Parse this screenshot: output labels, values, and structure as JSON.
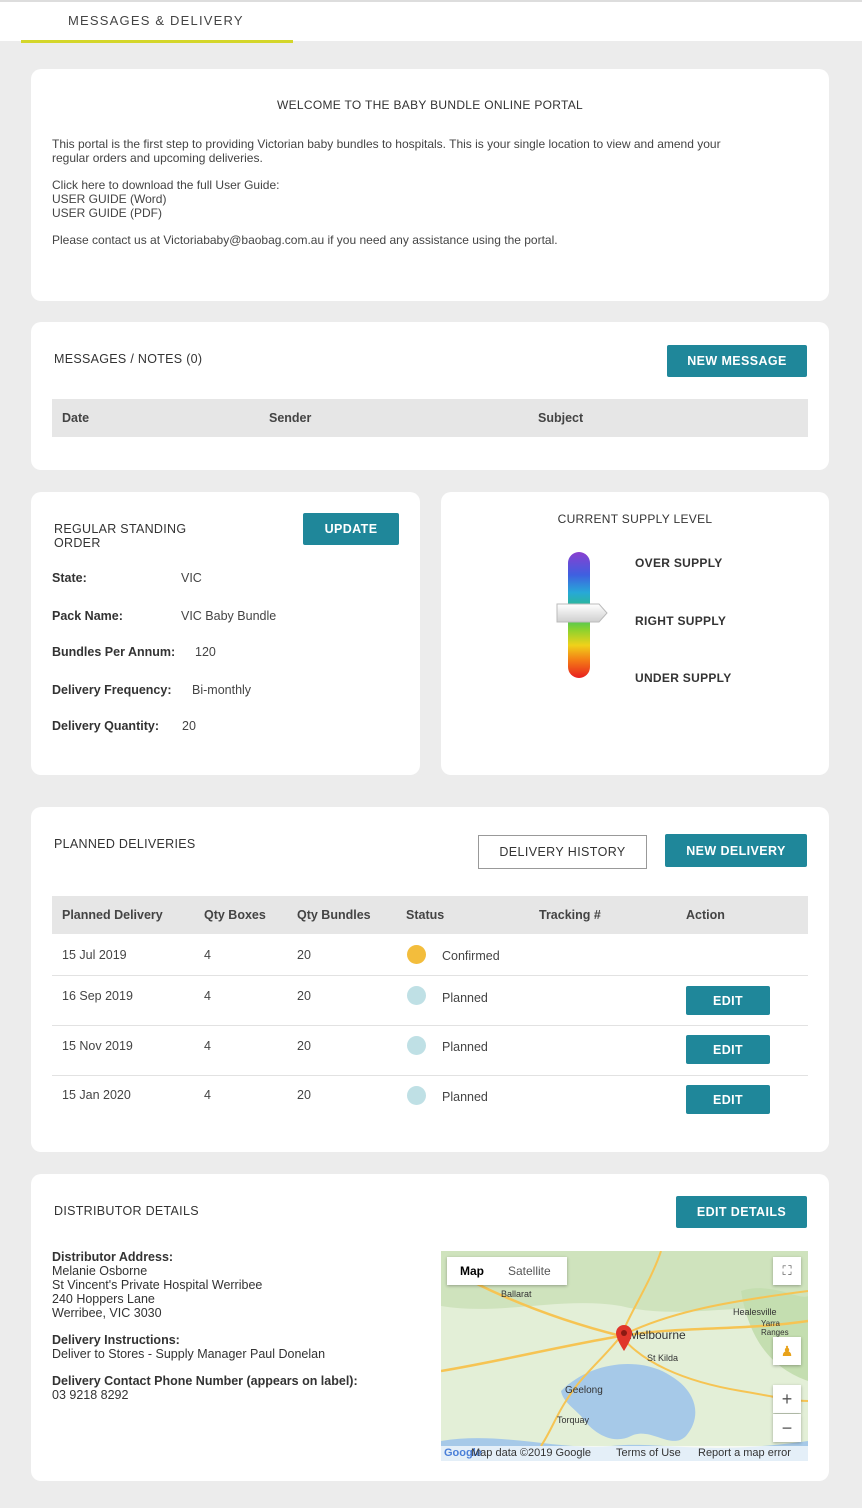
{
  "tab": {
    "label": "MESSAGES & DELIVERY"
  },
  "welcome": {
    "title": "WELCOME TO THE BABY BUNDLE ONLINE PORTAL",
    "intro_line1": "This portal is the first step to providing Victorian baby bundles to hospitals. This is your single location to view and amend your",
    "intro_line2": "regular orders and upcoming deliveries.",
    "download_text": "Click here to download the full User Guide:",
    "guide_word": "USER GUIDE (Word)",
    "guide_pdf": "USER GUIDE (PDF)",
    "contact_text": "Please contact us at Victoriababy@baobag.com.au if you need any assistance using the portal."
  },
  "messages": {
    "heading": "MESSAGES / NOTES (0)",
    "new_button": "NEW MESSAGE",
    "columns": [
      "Date",
      "Sender",
      "Subject"
    ]
  },
  "standing_order": {
    "heading_line1": "REGULAR STANDING",
    "heading_line2": "ORDER",
    "update_button": "UPDATE",
    "fields": [
      {
        "label": "State:",
        "value": "VIC"
      },
      {
        "label": "Pack Name:",
        "value": "VIC Baby Bundle"
      },
      {
        "label": "Bundles Per Annum:",
        "value": "120"
      },
      {
        "label": "Delivery Frequency:",
        "value": "Bi-monthly"
      },
      {
        "label": "Delivery Quantity:",
        "value": "20"
      }
    ]
  },
  "supply": {
    "heading": "CURRENT SUPPLY LEVEL",
    "levels": [
      "OVER SUPPLY",
      "RIGHT SUPPLY",
      "UNDER SUPPLY"
    ],
    "current_level": "RIGHT SUPPLY"
  },
  "deliveries": {
    "heading": "PLANNED DELIVERIES",
    "history_button": "DELIVERY HISTORY",
    "new_button": "NEW DELIVERY",
    "columns": [
      "Planned Delivery",
      "Qty Boxes",
      "Qty Bundles",
      "Status",
      "Tracking #",
      "Action"
    ],
    "rows": [
      {
        "date": "15 Jul 2019",
        "boxes": "4",
        "bundles": "20",
        "status": "Confirmed",
        "status_color": "#f3bd3c",
        "action": ""
      },
      {
        "date": "16 Sep 2019",
        "boxes": "4",
        "bundles": "20",
        "status": "Planned",
        "status_color": "#bfe0e5",
        "action": "EDIT"
      },
      {
        "date": "15 Nov 2019",
        "boxes": "4",
        "bundles": "20",
        "status": "Planned",
        "status_color": "#bfe0e5",
        "action": "EDIT"
      },
      {
        "date": "15 Jan 2020",
        "boxes": "4",
        "bundles": "20",
        "status": "Planned",
        "status_color": "#bfe0e5",
        "action": "EDIT"
      }
    ]
  },
  "distributor": {
    "heading": "DISTRIBUTOR DETAILS",
    "edit_button": "EDIT DETAILS",
    "address_label": "Distributor Address:",
    "address_lines": [
      "Melanie Osborne",
      "St Vincent's Private Hospital Werribee",
      "240 Hoppers Lane",
      "Werribee, VIC 3030"
    ],
    "instructions_label": "Delivery Instructions:",
    "instructions": "Deliver to Stores - Supply Manager Paul Donelan",
    "phone_label": "Delivery Contact Phone Number (appears on label):",
    "phone": "03 9218 8292"
  },
  "map": {
    "tab_map": "Map",
    "tab_satellite": "Satellite",
    "city": "Melbourne",
    "places": [
      "Ballarat",
      "Geelong",
      "St Kilda",
      "Torquay",
      "Healesville",
      "Yarra Ranges"
    ],
    "footer_logo": "Google",
    "footer_data": "Map data ©2019 Google",
    "footer_terms": "Terms of Use",
    "footer_report": "Report a map error",
    "colors": {
      "land": "#e3efd7",
      "water": "#a6c9e8",
      "road": "#f6c453",
      "pin": "#e0362b"
    }
  }
}
